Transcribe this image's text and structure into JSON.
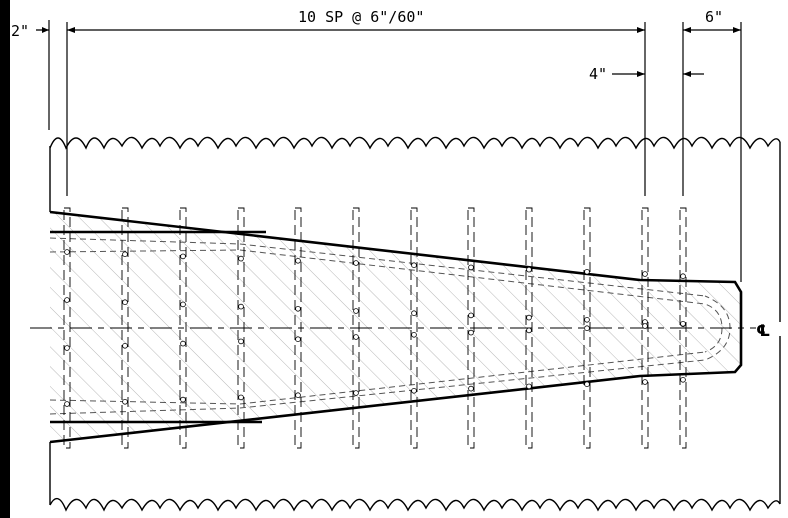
{
  "dimensions": {
    "left_edge": "2\"",
    "main_spacing": "10 SP @ 6\"/60\"",
    "right_spacing": "6\"",
    "small_gap": "4\""
  },
  "centerline_symbol": "℄",
  "colors": {
    "line": "#000000",
    "hatch": "#b8b8b8",
    "background": "#ffffff"
  }
}
